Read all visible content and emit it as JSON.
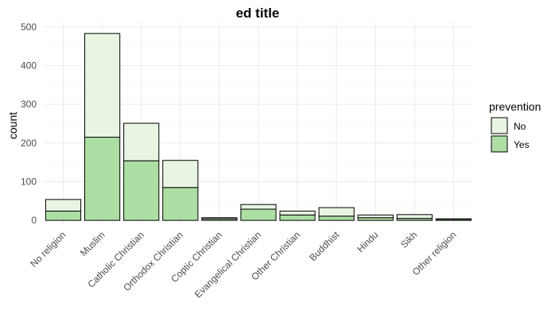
{
  "chart_data": {
    "type": "bar",
    "stacked": true,
    "title": "ed title",
    "xlabel": "",
    "ylabel": "count",
    "ylim": [
      0,
      500
    ],
    "yticks": [
      0,
      100,
      200,
      300,
      400,
      500
    ],
    "grid": true,
    "legend_position": "right",
    "legend_title": "prevention",
    "categories": [
      "No religion",
      "Muslim",
      "Catholic Christian",
      "Orthodox Christian",
      "Coptic Christian",
      "Evangelical Christian",
      "Other Christian",
      "Buddhist",
      "Hindu",
      "Sikh",
      "Other religion"
    ],
    "series": [
      {
        "name": "No",
        "color": "#e8f5e2",
        "values": [
          30,
          268,
          97,
          70,
          3,
          12,
          10,
          22,
          7,
          10,
          1
        ]
      },
      {
        "name": "Yes",
        "color": "#addea4",
        "values": [
          24,
          215,
          154,
          85,
          4,
          29,
          14,
          11,
          7,
          5,
          3
        ]
      }
    ]
  }
}
